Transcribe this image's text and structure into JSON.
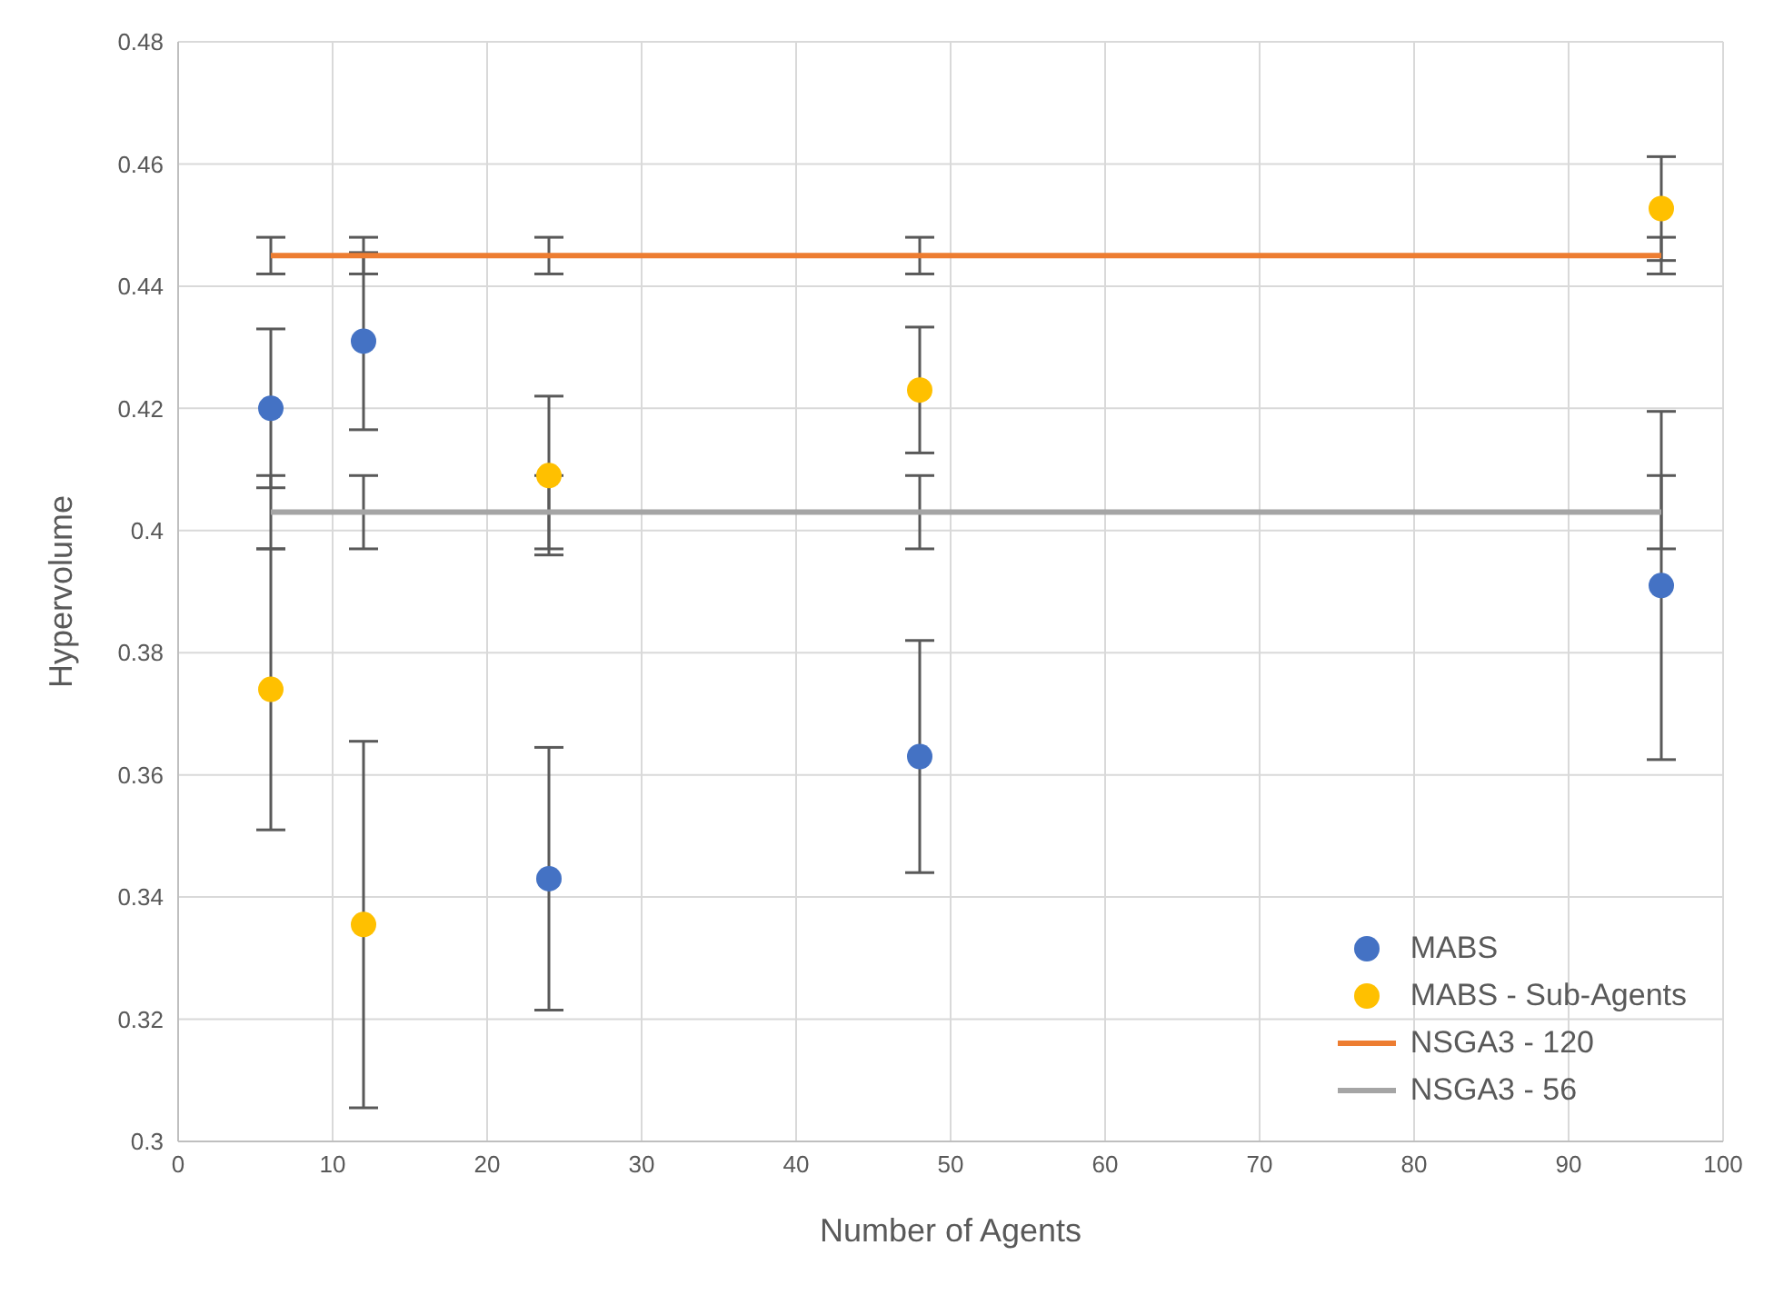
{
  "chart_data": {
    "type": "scatter",
    "xlabel": "Number of Agents",
    "ylabel": "Hypervolume",
    "xlim": [
      0,
      100
    ],
    "xticks": [
      0,
      10,
      20,
      30,
      40,
      50,
      60,
      70,
      80,
      90,
      100
    ],
    "ylim": [
      0.3,
      0.48
    ],
    "yticks": [
      0.3,
      0.32,
      0.34,
      0.36,
      0.38,
      0.4,
      0.42,
      0.44,
      0.46,
      0.48
    ],
    "grid": true,
    "legend": "bottom right",
    "marker": "circle",
    "series": [
      {
        "name": "MABS",
        "color": "#4472c4",
        "x": [
          6,
          12,
          24,
          48,
          96
        ],
        "values": [
          0.42,
          0.431,
          0.343,
          0.363,
          0.391
        ],
        "errors": [
          0.013,
          0.0145,
          0.0215,
          0.019,
          0.0285
        ]
      },
      {
        "name": "MABS - Sub-Agents",
        "color": "#ffc000",
        "x": [
          6,
          12,
          24,
          48,
          96
        ],
        "values": [
          0.374,
          0.3355,
          0.409,
          0.423,
          0.4527
        ],
        "errors": [
          0.023,
          0.03,
          0.013,
          0.0103,
          0.0085
        ]
      },
      {
        "name": "NSGA3 - 120",
        "type": "line",
        "color": "#ed7d31",
        "x": [
          6,
          12,
          24,
          48,
          96
        ],
        "values": [
          0.445,
          0.445,
          0.445,
          0.445,
          0.445
        ],
        "errors": [
          0.003,
          0.003,
          0.003,
          0.003,
          0.003
        ],
        "marker": "none"
      },
      {
        "name": "NSGA3 - 56",
        "type": "line",
        "color": "#a5a5a5",
        "x": [
          6,
          12,
          24,
          48,
          96
        ],
        "values": [
          0.403,
          0.403,
          0.403,
          0.403,
          0.403
        ],
        "errors": [
          0.006,
          0.006,
          0.006,
          0.006,
          0.006
        ],
        "marker": "none"
      }
    ]
  }
}
